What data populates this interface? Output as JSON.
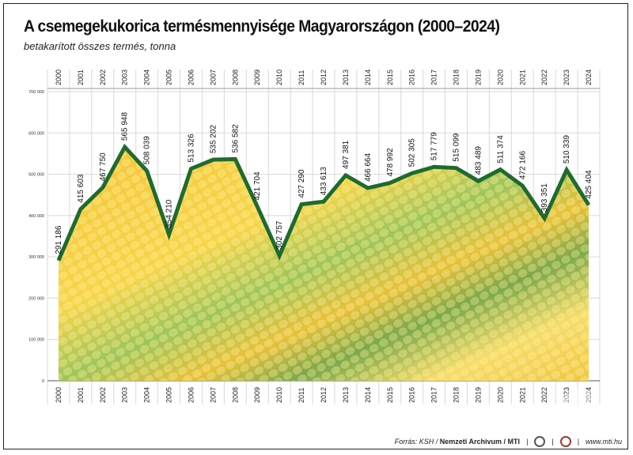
{
  "title": "A csemegekukorica termésmennyisége Magyarországon (2000–2024)",
  "subtitle": "betakarított összes termés, tonna",
  "footer": {
    "source_prefix": "Forrás: KSH / ",
    "source_bold": "Nemzeti Archivum / MTI",
    "website": "www.mti.hu"
  },
  "watermark": "MTI",
  "colors": {
    "line": "#1f6b2f",
    "grid": "#d9d9d9",
    "corn": "#f2c230",
    "husk": "#8bbf4a"
  },
  "chart_data": {
    "type": "line",
    "title": "A csemegekukorica termésmennyisége Magyarországon (2000–2024)",
    "subtitle": "betakarított összes termés, tonna",
    "x": [
      "2000",
      "2001",
      "2002",
      "2003",
      "2004",
      "2005",
      "2006",
      "2007",
      "2008",
      "2009",
      "2010",
      "2011",
      "2012",
      "2013",
      "2014",
      "2015",
      "2016",
      "2017",
      "2018",
      "2019",
      "2020",
      "2021",
      "2022",
      "2023",
      "2024"
    ],
    "values": [
      291186,
      415603,
      467750,
      565948,
      508039,
      354210,
      513326,
      535202,
      536582,
      421704,
      302757,
      427290,
      433613,
      497381,
      466664,
      478992,
      502305,
      517779,
      515099,
      483489,
      511374,
      472166,
      393351,
      510339,
      425404
    ],
    "data_labels": [
      "291 186",
      "415 603",
      "467 750",
      "565 948",
      "508 039",
      "354 210",
      "513 326",
      "535 202",
      "536 582",
      "421 704",
      "302 757",
      "427 290",
      "433 613",
      "497 381",
      "466 664",
      "478 992",
      "502 305",
      "517 779",
      "515 099",
      "483 489",
      "511 374",
      "472 166",
      "393 351",
      "510 339",
      "425 404"
    ],
    "yticks": [
      0,
      100000,
      200000,
      300000,
      400000,
      500000,
      600000,
      700000
    ],
    "ytick_labels": [
      "0",
      "100 000",
      "200 000",
      "300 000",
      "400 000",
      "500 000",
      "600 000",
      "700 000"
    ],
    "ylim": [
      0,
      700000
    ],
    "grid": true,
    "legend": "none"
  }
}
